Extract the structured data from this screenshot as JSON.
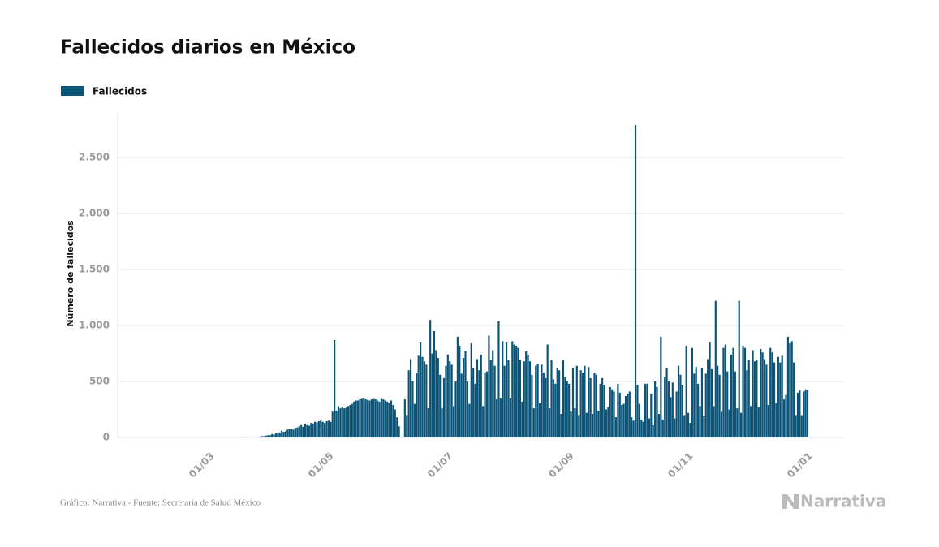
{
  "chart_data": {
    "type": "bar",
    "title": "Fallecidos diarios en México",
    "y_label": "Número de fallecidos",
    "source": "Gráfico: Narrativa - Fuente: Secretaría de Salud México",
    "brand": "Narrativa",
    "legend": "top-left",
    "grid": true,
    "ylim": [
      0,
      2900
    ],
    "yticks": [
      0,
      500,
      {
        "value": 1000,
        "label": "1.000"
      },
      {
        "value": 1500,
        "label": "1.500"
      },
      {
        "value": 2000,
        "label": "2.000"
      },
      {
        "value": 2500,
        "label": "2.500"
      }
    ],
    "categories": [
      null,
      null,
      null,
      null,
      null,
      null,
      null,
      null,
      null,
      null,
      null,
      null,
      null,
      null,
      null,
      null,
      null,
      null,
      null,
      null,
      null,
      null,
      null,
      null,
      null,
      null,
      null,
      null,
      null,
      "01/03",
      null,
      null,
      null,
      null,
      null,
      null,
      null,
      null,
      null,
      null,
      null,
      null,
      null,
      null,
      null,
      null,
      null,
      null,
      null,
      null,
      null,
      null,
      null,
      null,
      null,
      null,
      null,
      null,
      null,
      null,
      null,
      null,
      null,
      null,
      null,
      null,
      null,
      null,
      null,
      null,
      null,
      null,
      null,
      null,
      null,
      null,
      null,
      null,
      null,
      null,
      null,
      null,
      null,
      null,
      null,
      null,
      null,
      null,
      null,
      null,
      "01/05",
      null,
      null,
      null,
      null,
      null,
      null,
      null,
      null,
      null,
      null,
      null,
      null,
      null,
      null,
      null,
      null,
      null,
      null,
      null,
      null,
      null,
      null,
      null,
      null,
      null,
      null,
      null,
      null,
      null,
      null,
      null,
      null,
      null,
      null,
      null,
      null,
      null,
      null,
      null,
      null,
      null,
      null,
      null,
      null,
      null,
      null,
      null,
      null,
      null,
      null,
      null,
      null,
      null,
      null,
      null,
      null,
      null,
      null,
      null,
      null,
      "01/07",
      null,
      null,
      null,
      null,
      null,
      null,
      null,
      null,
      null,
      null,
      null,
      null,
      null,
      null,
      null,
      null,
      null,
      null,
      null,
      null,
      null,
      null,
      null,
      null,
      null,
      null,
      null,
      null,
      null,
      null,
      null,
      null,
      null,
      null,
      null,
      null,
      null,
      null,
      null,
      null,
      null,
      null,
      null,
      null,
      null,
      null,
      null,
      null,
      null,
      null,
      null,
      null,
      null,
      null,
      null,
      null,
      null,
      null,
      null,
      null,
      null,
      "01/09",
      null,
      null,
      null,
      null,
      null,
      null,
      null,
      null,
      null,
      null,
      null,
      null,
      null,
      null,
      null,
      null,
      null,
      null,
      null,
      null,
      null,
      null,
      null,
      null,
      null,
      null,
      null,
      null,
      null,
      null,
      null,
      null,
      null,
      null,
      null,
      null,
      null,
      null,
      null,
      null,
      null,
      null,
      null,
      null,
      null,
      null,
      null,
      null,
      null,
      null,
      null,
      null,
      null,
      null,
      null,
      null,
      null,
      null,
      null,
      null,
      "01/11",
      null,
      null,
      null,
      null,
      null,
      null,
      null,
      null,
      null,
      null,
      null,
      null,
      null,
      null,
      null,
      null,
      null,
      null,
      null,
      null,
      null,
      null,
      null,
      null,
      null,
      null,
      null,
      null,
      null,
      null,
      null,
      null,
      null,
      null,
      null,
      null,
      null,
      null,
      null,
      null,
      null,
      null,
      null,
      null,
      null,
      null,
      null,
      null,
      null,
      null,
      null,
      null,
      null,
      null,
      null,
      null,
      null,
      null,
      null,
      null,
      "01/01"
    ],
    "series": [
      {
        "name": "Fallecidos",
        "color": "#0b5377",
        "values": [
          0,
          0,
          0,
          0,
          0,
          0,
          0,
          0,
          0,
          0,
          0,
          0,
          0,
          0,
          0,
          0,
          0,
          0,
          0,
          0,
          0,
          0,
          0,
          0,
          0,
          0,
          0,
          0,
          0,
          0,
          0,
          0,
          0,
          0,
          0,
          0,
          0,
          0,
          0,
          0,
          0,
          0,
          0,
          0,
          0,
          0,
          1,
          1,
          2,
          2,
          2,
          3,
          4,
          5,
          6,
          8,
          12,
          12,
          16,
          20,
          20,
          30,
          25,
          40,
          35,
          45,
          60,
          50,
          55,
          70,
          75,
          80,
          70,
          85,
          90,
          100,
          110,
          95,
          120,
          110,
          105,
          130,
          125,
          140,
          135,
          145,
          150,
          140,
          130,
          145,
          150,
          140,
          230,
          870,
          240,
          280,
          260,
          270,
          260,
          265,
          280,
          290,
          300,
          320,
          330,
          330,
          340,
          345,
          350,
          340,
          335,
          330,
          340,
          345,
          340,
          330,
          320,
          345,
          340,
          330,
          320,
          310,
          330,
          290,
          250,
          180,
          100,
          0,
          0,
          340,
          200,
          600,
          700,
          500,
          300,
          580,
          730,
          850,
          720,
          680,
          650,
          260,
          1050,
          750,
          950,
          780,
          710,
          560,
          260,
          530,
          640,
          740,
          680,
          650,
          280,
          500,
          900,
          820,
          570,
          710,
          770,
          500,
          300,
          840,
          620,
          480,
          700,
          600,
          740,
          280,
          580,
          590,
          910,
          690,
          780,
          640,
          340,
          1040,
          350,
          860,
          640,
          850,
          690,
          350,
          860,
          830,
          820,
          800,
          690,
          320,
          680,
          770,
          740,
          680,
          560,
          260,
          640,
          660,
          310,
          650,
          580,
          530,
          830,
          260,
          690,
          520,
          480,
          620,
          600,
          210,
          690,
          540,
          500,
          480,
          230,
          620,
          260,
          640,
          200,
          600,
          580,
          640,
          220,
          630,
          530,
          210,
          580,
          560,
          240,
          480,
          530,
          470,
          250,
          270,
          450,
          430,
          410,
          180,
          480,
          400,
          290,
          300,
          370,
          390,
          410,
          180,
          150,
          2790,
          470,
          300,
          160,
          140,
          480,
          480,
          170,
          390,
          110,
          500,
          450,
          210,
          900,
          160,
          540,
          620,
          500,
          360,
          490,
          170,
          410,
          640,
          560,
          470,
          200,
          820,
          220,
          130,
          800,
          570,
          630,
          480,
          280,
          620,
          190,
          570,
          700,
          850,
          610,
          280,
          1220,
          640,
          560,
          230,
          800,
          830,
          590,
          250,
          740,
          800,
          590,
          260,
          1220,
          220,
          820,
          800,
          600,
          690,
          280,
          780,
          680,
          690,
          270,
          790,
          760,
          700,
          650,
          290,
          800,
          760,
          670,
          310,
          720,
          670,
          730,
          340,
          380,
          900,
          840,
          860,
          670,
          200,
          400,
          420,
          200,
          410,
          430,
          420
        ]
      }
    ]
  }
}
